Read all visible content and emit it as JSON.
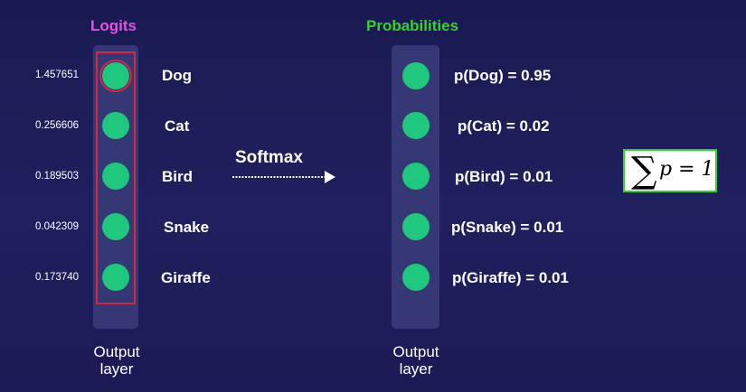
{
  "titles": {
    "logits": "Logits",
    "probabilities": "Probabilities",
    "logits_color": "#e94fe6",
    "probabilities_color": "#35d12c"
  },
  "rows": [
    {
      "logit": "1.457651",
      "label": "Dog",
      "prob": "p(Dog) = 0.95"
    },
    {
      "logit": "0.256606",
      "label": "Cat",
      "prob": "p(Cat) = 0.02"
    },
    {
      "logit": "0.189503",
      "label": "Bird",
      "prob": "p(Bird) = 0.01"
    },
    {
      "logit": "0.042309",
      "label": "Snake",
      "prob": "p(Snake) = 0.01"
    },
    {
      "logit": "0.173740",
      "label": "Giraffe",
      "prob": "p(Giraffe) = 0.01"
    }
  ],
  "arrow_label": "Softmax",
  "footer": {
    "left": "Output layer",
    "right": "Output layer"
  },
  "formula": {
    "symbol": "∑",
    "text": "p = 1"
  },
  "colors": {
    "node": "#1ec97e",
    "highlight": "#d7263d",
    "formula_border": "#35d12c"
  }
}
